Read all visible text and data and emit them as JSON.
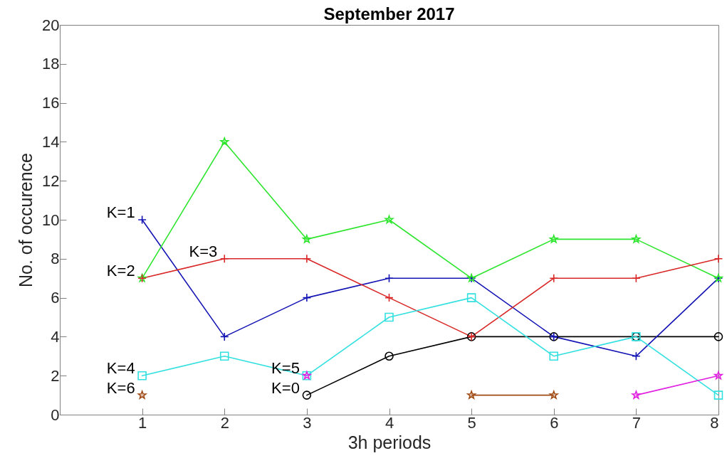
{
  "chart_data": {
    "type": "line",
    "title": "September 2017",
    "xlabel": "3h periods",
    "ylabel": "No. of occurence",
    "x": [
      1,
      2,
      3,
      4,
      5,
      6,
      7,
      8
    ],
    "xlim": [
      0,
      8
    ],
    "xticks": [
      1,
      2,
      3,
      4,
      5,
      6,
      7,
      8
    ],
    "ylim": [
      0,
      20
    ],
    "yticks": [
      0,
      2,
      4,
      6,
      8,
      10,
      12,
      14,
      16,
      18,
      20
    ],
    "line_style": "solid",
    "series": [
      {
        "name": "K=0",
        "color": "#000000",
        "marker": "circle",
        "values": [
          null,
          null,
          1,
          3,
          4,
          4,
          4,
          4
        ]
      },
      {
        "name": "K=1",
        "color": "#1414b4",
        "marker": "cross",
        "values": [
          10,
          4,
          6,
          7,
          7,
          4,
          3,
          7
        ]
      },
      {
        "name": "K=2",
        "color": "#2ee52e",
        "marker": "star",
        "values": [
          7,
          14,
          9,
          10,
          7,
          9,
          9,
          7
        ]
      },
      {
        "name": "K=3",
        "color": "#d92626",
        "marker": "cross",
        "values": [
          7,
          8,
          8,
          6,
          4,
          7,
          7,
          8
        ]
      },
      {
        "name": "K=4",
        "color": "#33e0e0",
        "marker": "square",
        "values": [
          2,
          3,
          2,
          5,
          6,
          3,
          4,
          1
        ]
      },
      {
        "name": "K=5",
        "color": "#e01fe0",
        "marker": "star",
        "values": [
          null,
          null,
          2,
          null,
          null,
          null,
          1,
          2
        ]
      },
      {
        "name": "K=6",
        "color": "#a04a14",
        "marker": "star",
        "values": [
          1,
          null,
          null,
          null,
          1,
          1,
          null,
          null
        ]
      }
    ]
  }
}
